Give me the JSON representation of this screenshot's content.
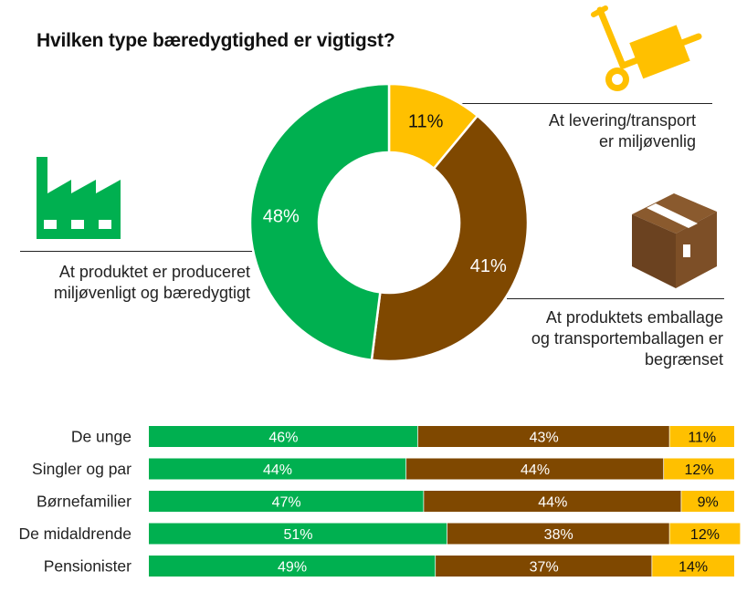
{
  "title": "Hvilken type bæredygtighed er vigtigst?",
  "labels": {
    "delivery": [
      "At levering/transport",
      "er miljøvenlig"
    ],
    "product": [
      "At produktet er produceret",
      "miljøvenligt og bæredygtigt"
    ],
    "packaging": [
      "At produktets emballage",
      "og transportemballagen er",
      "begrænset"
    ]
  },
  "colors": {
    "green": "#00b050",
    "brown": "#7f4800",
    "yellow": "#ffc000",
    "text": "#222222"
  },
  "icons": {
    "delivery": "hand-truck-icon",
    "product": "factory-icon",
    "packaging": "cardboard-box-icon"
  },
  "chart_data": [
    {
      "type": "pie",
      "categories": [
        "At levering/transport er miljøvenlig",
        "At produktets emballage og transportemballagen er begrænset",
        "At produktet er produceret miljøvenligt og bæredygtigt"
      ],
      "values": [
        11,
        41,
        48
      ],
      "value_labels": [
        "11%",
        "41%",
        "48%"
      ],
      "colors": [
        "#ffc000",
        "#7f4800",
        "#00b050"
      ]
    },
    {
      "type": "bar",
      "orientation": "horizontal",
      "stacked": true,
      "categories": [
        "De unge",
        "Singler og par",
        "Børnefamilier",
        "De midaldrende",
        "Pensionister"
      ],
      "series": [
        {
          "values": [
            46,
            44,
            47,
            51,
            49
          ],
          "color": "#00b050"
        },
        {
          "values": [
            43,
            44,
            44,
            38,
            37
          ],
          "color": "#7f4800"
        },
        {
          "values": [
            11,
            12,
            9,
            12,
            14
          ],
          "color": "#ffc000"
        }
      ],
      "xlim": [
        0,
        100
      ]
    }
  ]
}
